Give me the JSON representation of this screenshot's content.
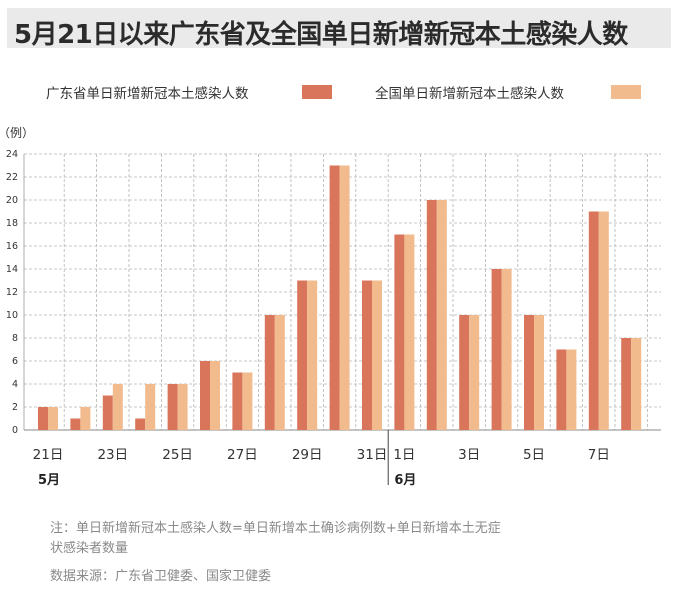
{
  "title": "5月21日以来广东省及全国单日新增新冠本土感染人数",
  "notes": {
    "line1": "注：单日新增新冠本土感染人数=单日新增本土确诊病例数+单日新增本土无症",
    "line2": "状感染者数量",
    "source": "数据来源：广东省卫健委、国家卫健委"
  },
  "chart_data": {
    "type": "bar",
    "ylabel": "（例）",
    "ylim": [
      0,
      24
    ],
    "yticks": [
      0,
      2,
      4,
      6,
      8,
      10,
      12,
      14,
      16,
      18,
      20,
      22,
      24
    ],
    "grid": true,
    "legend_position": "top",
    "categories": [
      "21日",
      "22日",
      "23日",
      "24日",
      "25日",
      "26日",
      "27日",
      "28日",
      "29日",
      "30日",
      "31日",
      "1日",
      "2日",
      "3日",
      "4日",
      "5日",
      "6日",
      "7日",
      "8日"
    ],
    "tick_labels": [
      "21日",
      "",
      "23日",
      "",
      "25日",
      "",
      "27日",
      "",
      "29日",
      "",
      "31日",
      "1日",
      "",
      "3日",
      "",
      "5日",
      "",
      "7日",
      ""
    ],
    "month_labels": [
      {
        "label": "5月",
        "index": 0
      },
      {
        "label": "6月",
        "index": 11
      }
    ],
    "series": [
      {
        "name": "广东省单日新增新冠本土感染人数",
        "color": "#d9755a",
        "values": [
          2,
          1,
          3,
          1,
          4,
          6,
          5,
          10,
          13,
          23,
          13,
          17,
          20,
          10,
          14,
          10,
          7,
          19,
          8
        ]
      },
      {
        "name": "全国单日新增新冠本土感染人数",
        "color": "#f2bb8e",
        "values": [
          2,
          2,
          4,
          4,
          4,
          6,
          5,
          10,
          13,
          23,
          13,
          17,
          20,
          10,
          14,
          10,
          7,
          19,
          8
        ]
      }
    ]
  }
}
